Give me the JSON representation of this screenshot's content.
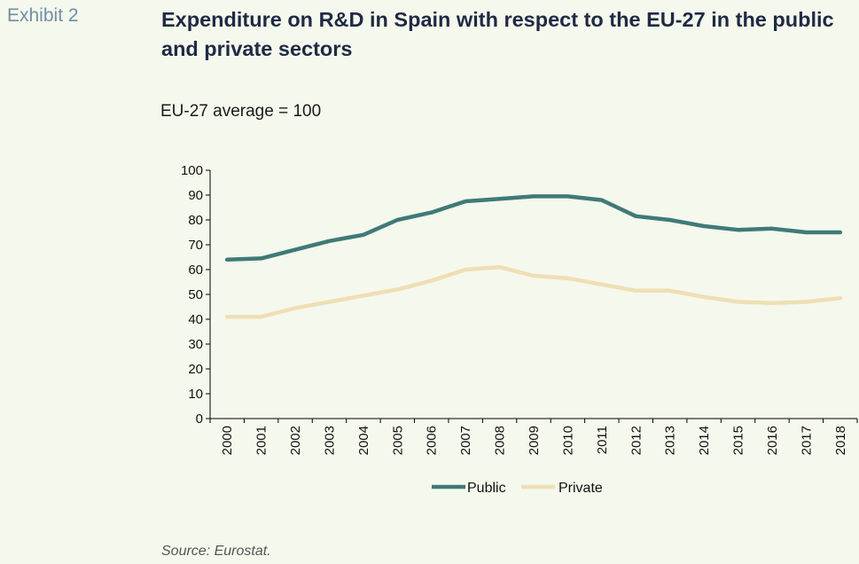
{
  "exhibit_label": "Exhibit 2",
  "source": "Source: Eurostat.",
  "chart_data": {
    "type": "line",
    "title": "Expenditure on R&D in Spain with respect to the EU-27 in the public and private sectors",
    "subtitle": "EU-27 average = 100",
    "x": [
      "2000",
      "2001",
      "2002",
      "2003",
      "2004",
      "2005",
      "2006",
      "2007",
      "2008",
      "2009",
      "2010",
      "2011",
      "2012",
      "2013",
      "2014",
      "2015",
      "2016",
      "2017",
      "2018"
    ],
    "ylim": [
      0,
      100
    ],
    "yticks": [
      0,
      10,
      20,
      30,
      40,
      50,
      60,
      70,
      80,
      90,
      100
    ],
    "grid": false,
    "legend_position": "bottom-center",
    "series": [
      {
        "name": "Public",
        "color": "#3f7a78",
        "values": [
          64,
          64.5,
          68,
          71.5,
          74,
          80,
          83,
          87.5,
          88.5,
          89.5,
          89.5,
          88,
          81.5,
          80,
          77.5,
          76,
          76.5,
          75,
          75
        ]
      },
      {
        "name": "Private",
        "color": "#efdfb4",
        "values": [
          41,
          41,
          44.5,
          47,
          49.5,
          52,
          55.5,
          60,
          61,
          57.5,
          56.5,
          54,
          51.5,
          51.5,
          49,
          47,
          46.5,
          47,
          48.5
        ]
      }
    ]
  }
}
